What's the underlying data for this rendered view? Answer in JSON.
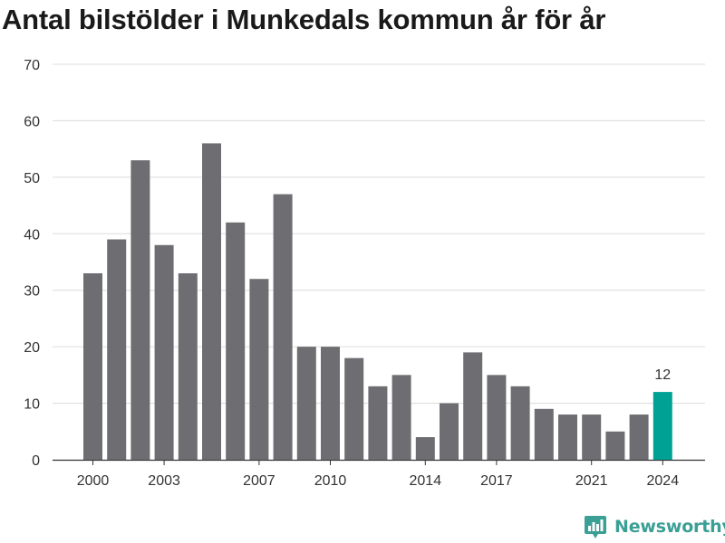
{
  "title": "Antal bilstölder i Munkedals kommun år för år",
  "chart_data": {
    "type": "bar",
    "title": "Antal bilstölder i Munkedals kommun år för år",
    "xlabel": "",
    "ylabel": "",
    "x": [
      2000,
      2001,
      2002,
      2003,
      2004,
      2005,
      2006,
      2007,
      2008,
      2009,
      2010,
      2011,
      2012,
      2013,
      2014,
      2015,
      2016,
      2017,
      2018,
      2019,
      2020,
      2021,
      2022,
      2023,
      2024
    ],
    "values": [
      33,
      39,
      53,
      38,
      33,
      56,
      42,
      32,
      47,
      20,
      20,
      18,
      13,
      15,
      4,
      10,
      19,
      15,
      13,
      9,
      8,
      8,
      5,
      8,
      12
    ],
    "ylim": [
      0,
      70
    ],
    "yticks": [
      "0",
      "10",
      "20",
      "30",
      "40",
      "50",
      "60",
      "70"
    ],
    "xticks": [
      "2000",
      "2003",
      "2007",
      "2010",
      "2014",
      "2017",
      "2021",
      "2024"
    ],
    "highlight": {
      "x": 2024,
      "label": "12"
    },
    "grid": true,
    "colors": {
      "bar": "#6e6d72",
      "highlight": "#00a195",
      "grid": "#dcdcdc",
      "axis": "#333333",
      "text": "#333333"
    }
  },
  "brand": {
    "name": "Newsworthy",
    "icon": "newsworthy-logo-icon",
    "color": "#3a9f95"
  }
}
